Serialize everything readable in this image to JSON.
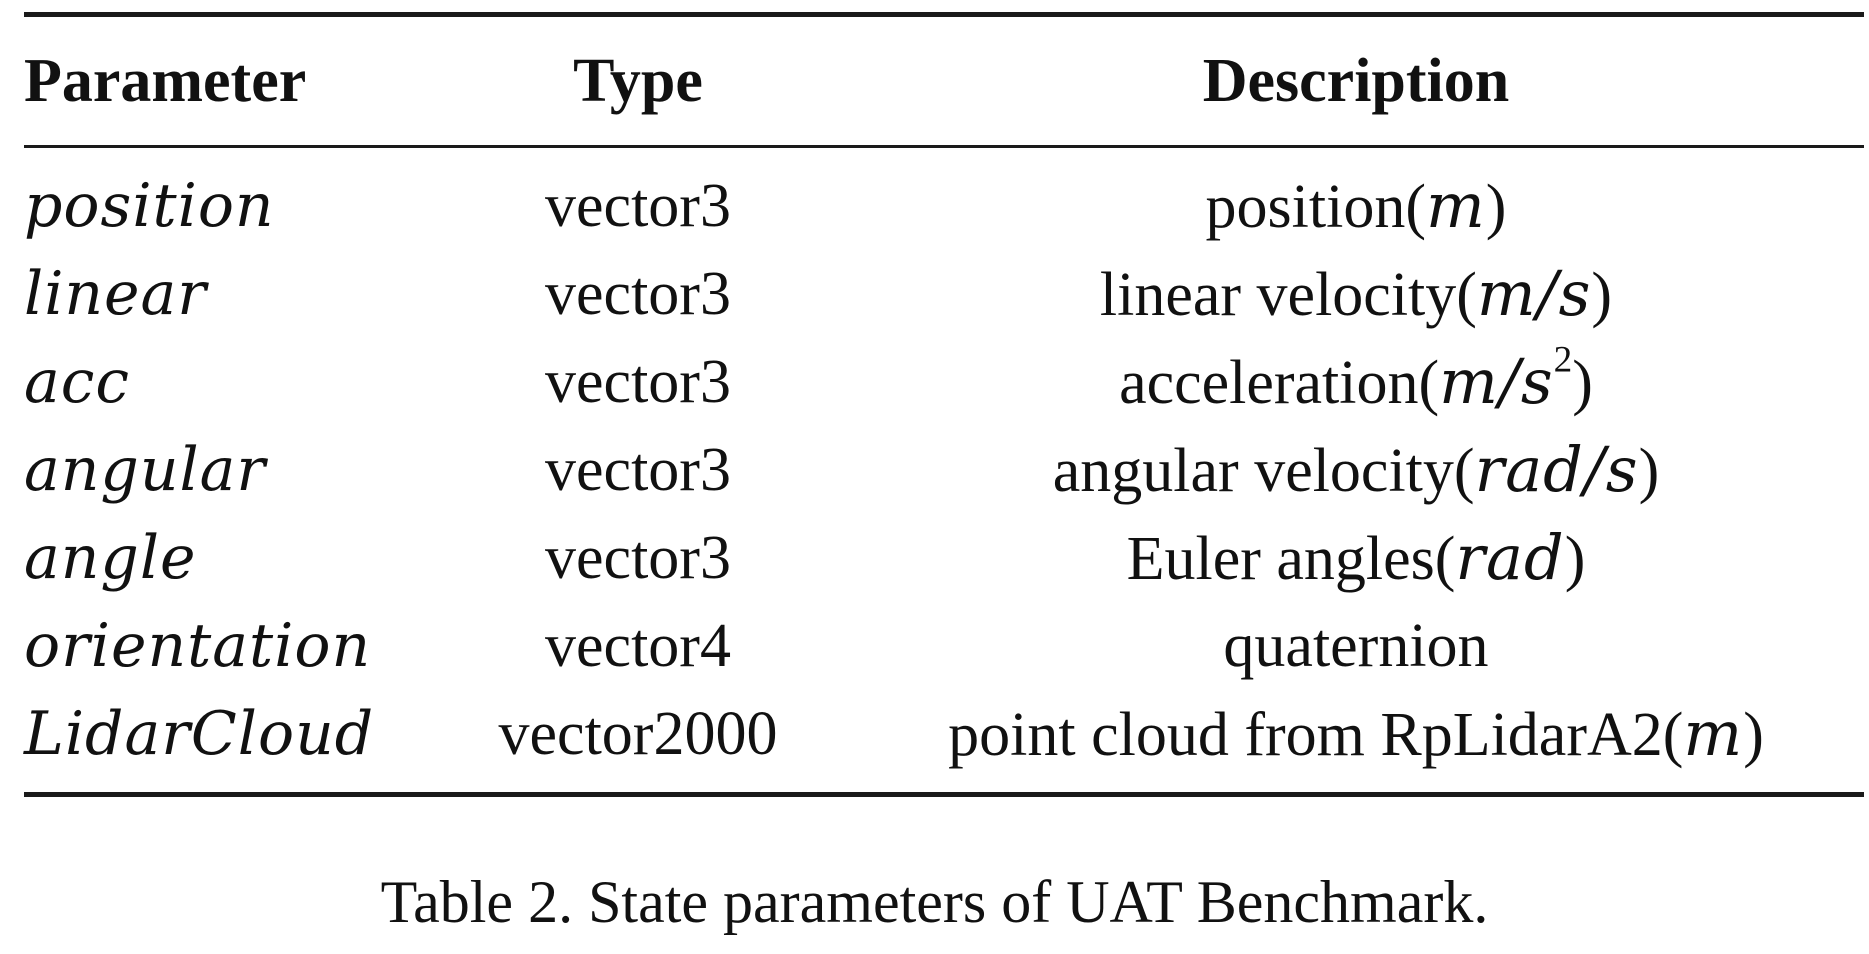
{
  "table": {
    "headers": {
      "parameter": "Parameter",
      "type": "Type",
      "description": "Description"
    },
    "rows": [
      {
        "parameter": "position",
        "type": "vector3",
        "desc_text": "position(",
        "desc_unit": "m",
        "desc_sup": "",
        "desc_close": ")"
      },
      {
        "parameter": "linear",
        "type": "vector3",
        "desc_text": "linear velocity(",
        "desc_unit": "m/s",
        "desc_sup": "",
        "desc_close": ")"
      },
      {
        "parameter": "acc",
        "type": "vector3",
        "desc_text": "acceleration(",
        "desc_unit": "m/s",
        "desc_sup": "2",
        "desc_close": ")"
      },
      {
        "parameter": "angular",
        "type": "vector3",
        "desc_text": "angular velocity(",
        "desc_unit": "rad/s",
        "desc_sup": "",
        "desc_close": ")"
      },
      {
        "parameter": "angle",
        "type": "vector3",
        "desc_text": "Euler angles(",
        "desc_unit": "rad",
        "desc_sup": "",
        "desc_close": ")"
      },
      {
        "parameter": "orientation",
        "type": "vector4",
        "desc_text": "quaternion",
        "desc_unit": "",
        "desc_sup": "",
        "desc_close": ""
      },
      {
        "parameter": "LidarCloud",
        "type": "vector2000",
        "desc_text": "point cloud from RpLidarA2(",
        "desc_unit": "m",
        "desc_sup": "",
        "desc_close": ")"
      }
    ]
  },
  "caption": "Table 2. State parameters of UAT Benchmark."
}
